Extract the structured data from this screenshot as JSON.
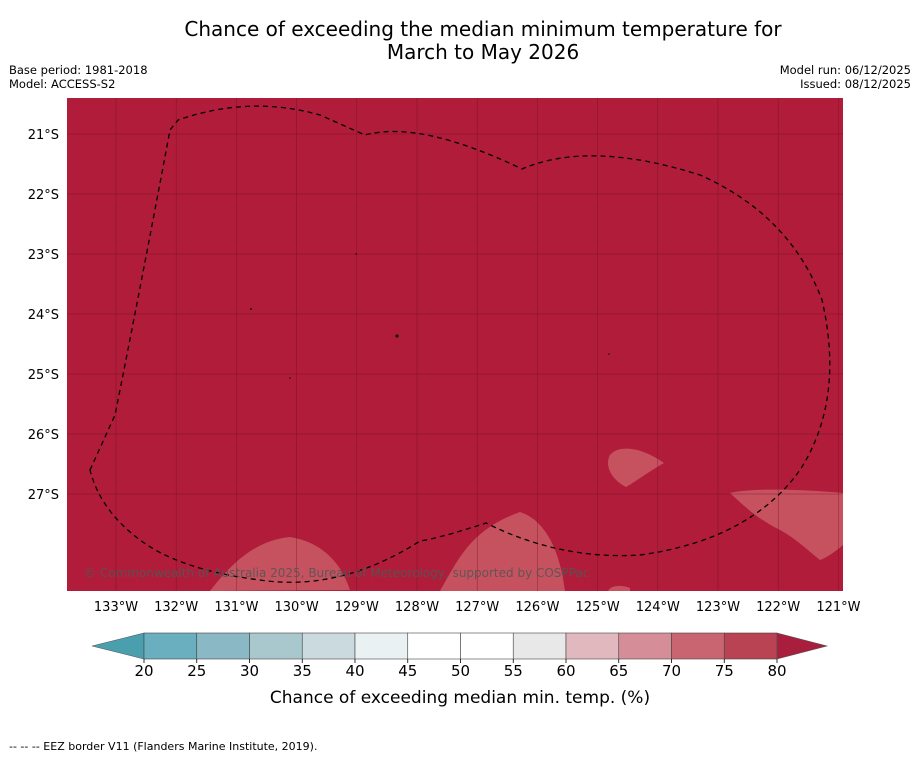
{
  "header": {
    "title_line1": "Chance of exceeding the median minimum temperature for",
    "title_line2": "March to May 2026",
    "base_period": "Base period: 1981-2018",
    "model": "Model: ACCESS-S2",
    "model_run": "Model run: 06/12/2025",
    "issued": "Issued: 08/12/2025"
  },
  "map": {
    "background_class_color": "#B01C3A",
    "lat_labels": [
      "21°S",
      "22°S",
      "23°S",
      "24°S",
      "25°S",
      "26°S",
      "27°S"
    ],
    "lat_values": [
      -21,
      -22,
      -23,
      -24,
      -25,
      -26,
      -27
    ],
    "lon_labels": [
      "133°W",
      "132°W",
      "131°W",
      "130°W",
      "129°W",
      "128°W",
      "127°W",
      "126°W",
      "125°W",
      "124°W",
      "123°W",
      "122°W",
      "121°W"
    ],
    "lon_values": [
      -133,
      -132,
      -131,
      -130,
      -129,
      -128,
      -127,
      -126,
      -125,
      -124,
      -123,
      -122,
      -121
    ],
    "copyright": "© Commonwealth of Australia 2025, Bureau of Meteorology, supported by COSPPac",
    "patch_color": "#C6525F",
    "gridline_color": "#6e1024",
    "eez_line_color": "#000000"
  },
  "colorbar": {
    "ticks": [
      "20",
      "25",
      "30",
      "35",
      "40",
      "45",
      "50",
      "55",
      "60",
      "65",
      "70",
      "75",
      "80"
    ],
    "colors": [
      "#6AAFBF",
      "#8AB8C4",
      "#A9C8CE",
      "#CBDADF",
      "#EAF1F3",
      "#FFFFFF",
      "#FFFFFF",
      "#E8E8E8",
      "#E1B8BE",
      "#D58E97",
      "#C96570",
      "#B94352"
    ],
    "under_color": "#4A9FAE",
    "over_color": "#A81E3C",
    "label": "Chance of exceeding median min. temp. (%)"
  },
  "footnote": "--  --  -- EEZ border V11 (Flanders Marine Institute, 2019)."
}
